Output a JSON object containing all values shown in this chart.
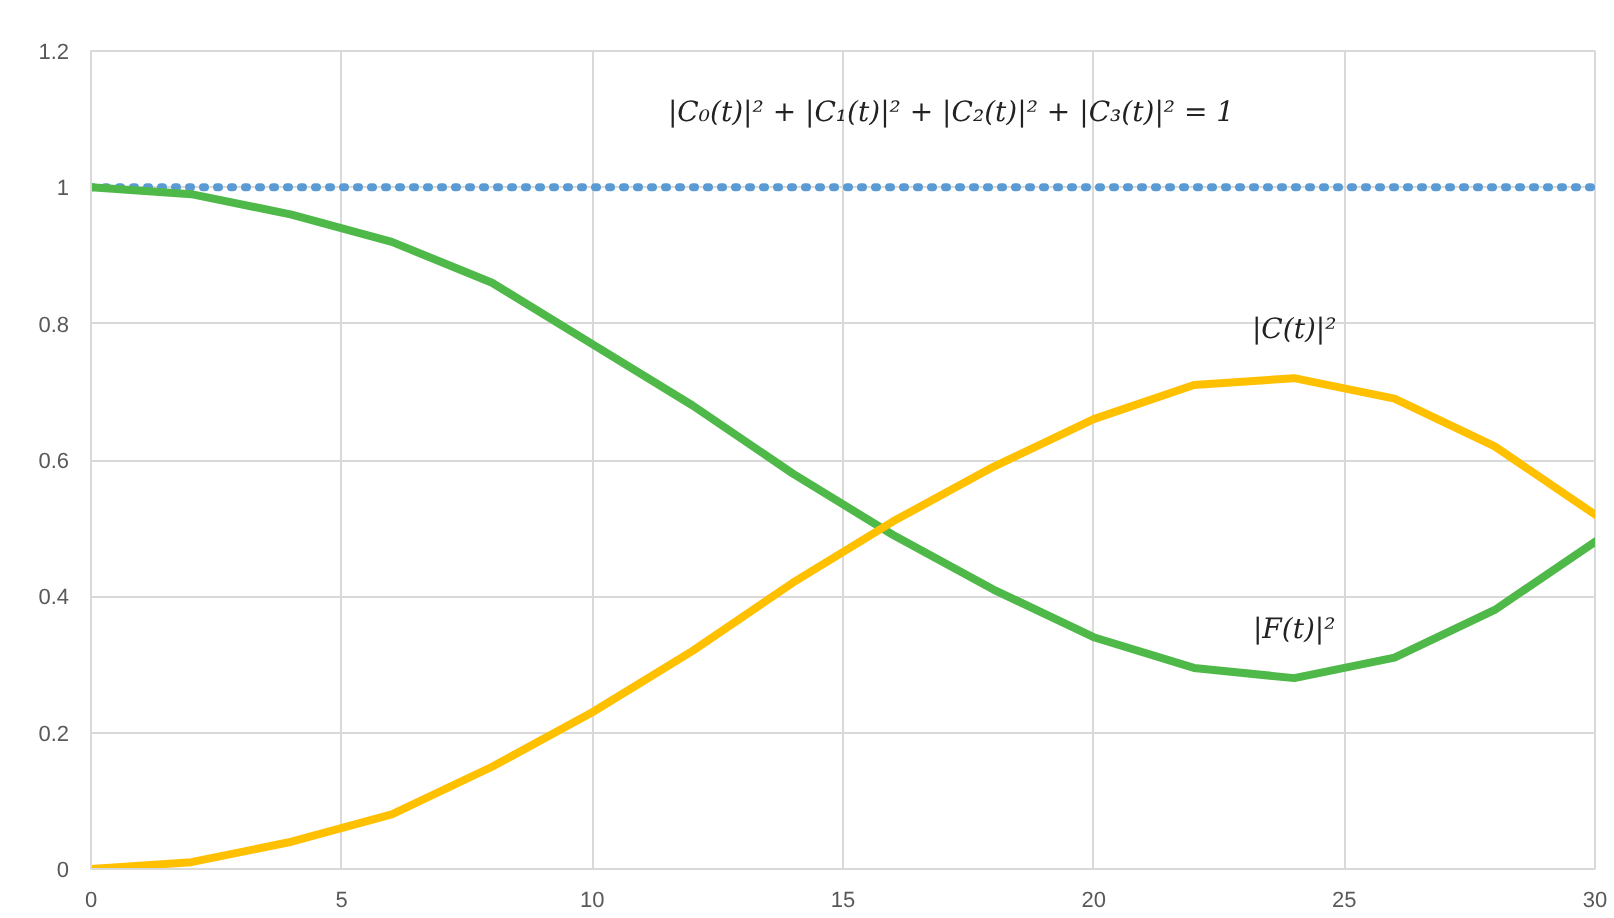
{
  "chart_data": {
    "type": "line",
    "x": [
      0,
      2,
      4,
      6,
      8,
      10,
      12,
      14,
      16,
      18,
      20,
      22,
      24,
      26,
      28,
      30
    ],
    "series": [
      {
        "color": "#5b9bd5",
        "line_style": "dotted",
        "values": [
          1,
          1,
          1,
          1,
          1,
          1,
          1,
          1,
          1,
          1,
          1,
          1,
          1,
          1,
          1,
          1
        ]
      },
      {
        "color": "#4eb848",
        "values": [
          1.0,
          0.99,
          0.96,
          0.92,
          0.86,
          0.77,
          0.68,
          0.58,
          0.49,
          0.41,
          0.34,
          0.295,
          0.28,
          0.31,
          0.38,
          0.48
        ]
      },
      {
        "color": "#ffc000",
        "values": [
          0,
          0.01,
          0.04,
          0.08,
          0.15,
          0.23,
          0.32,
          0.42,
          0.51,
          0.59,
          0.66,
          0.71,
          0.72,
          0.69,
          0.62,
          0.52
        ]
      }
    ],
    "xlim": [
      0,
      30
    ],
    "xticks": [
      0,
      5,
      10,
      15,
      20,
      25,
      30
    ],
    "ylim": [
      0,
      1.2
    ],
    "yticks": [
      0,
      0.2,
      0.4,
      0.6,
      0.8,
      1,
      1.2
    ],
    "grid": true,
    "annotations": [
      "|C₀(t)|² + |C₁(t)|² + |C₂(t)|² + |C₃(t)|² = 1",
      {
        "text": "|C(t)|²",
        "x": 24,
        "y": 0.72
      },
      {
        "text": "|F(t)|²",
        "x": 24,
        "y": 0.28
      }
    ]
  }
}
